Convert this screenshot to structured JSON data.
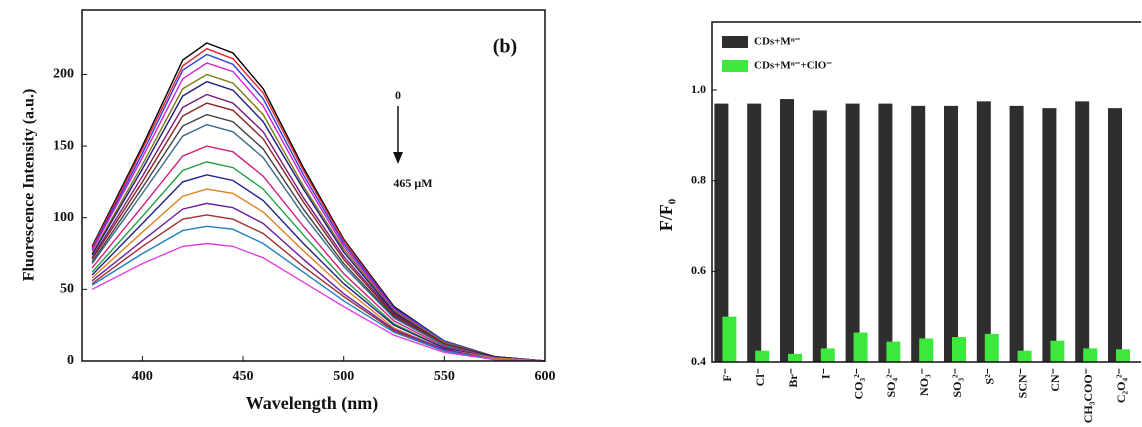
{
  "chart_data": [
    {
      "type": "line",
      "annotations": [
        "(b)",
        "0",
        "465 μM"
      ],
      "x_label": "Wavelength (nm)",
      "y_label": "Fluorescence Intensity (a.u.)",
      "x": [
        375,
        400,
        420,
        432,
        445,
        460,
        480,
        500,
        525,
        550,
        575,
        600
      ],
      "xlim": [
        370,
        600
      ],
      "xticks": [
        400,
        450,
        500,
        550,
        600
      ],
      "ylim": [
        0,
        245
      ],
      "yticks": [
        0,
        50,
        100,
        150,
        200
      ],
      "series": [
        {
          "color": "#000000",
          "values": [
            80,
            150,
            210,
            222,
            215,
            190,
            135,
            85,
            38,
            14,
            3,
            0
          ]
        },
        {
          "color": "#e8202a",
          "values": [
            79,
            148,
            206,
            218,
            211,
            187,
            133,
            84,
            37,
            14,
            3,
            0
          ]
        },
        {
          "color": "#2a3fd8",
          "values": [
            78,
            145,
            203,
            214,
            207,
            183,
            130,
            82,
            37,
            14,
            3,
            0
          ]
        },
        {
          "color": "#d020d0",
          "values": [
            77,
            142,
            197,
            208,
            202,
            178,
            127,
            80,
            36,
            13,
            3,
            0
          ]
        },
        {
          "color": "#7a7a10",
          "values": [
            75,
            137,
            190,
            200,
            194,
            172,
            122,
            78,
            35,
            13,
            3,
            0
          ]
        },
        {
          "color": "#1a1a80",
          "values": [
            74,
            134,
            185,
            195,
            189,
            167,
            120,
            76,
            34,
            12,
            3,
            0
          ]
        },
        {
          "color": "#7a1a7a",
          "values": [
            72,
            129,
            177,
            186,
            180,
            160,
            114,
            73,
            33,
            12,
            2,
            0
          ]
        },
        {
          "color": "#8a2020",
          "values": [
            71,
            125,
            171,
            180,
            175,
            155,
            111,
            71,
            32,
            12,
            2,
            0
          ]
        },
        {
          "color": "#404040",
          "values": [
            69,
            121,
            164,
            172,
            167,
            148,
            106,
            68,
            31,
            11,
            2,
            0
          ]
        },
        {
          "color": "#3a6a8a",
          "values": [
            68,
            117,
            157,
            165,
            160,
            142,
            102,
            66,
            30,
            11,
            2,
            0
          ]
        },
        {
          "color": "#d02080",
          "values": [
            65,
            108,
            143,
            150,
            146,
            129,
            94,
            61,
            28,
            10,
            2,
            0
          ]
        },
        {
          "color": "#20a040",
          "values": [
            62,
            101,
            133,
            139,
            135,
            120,
            88,
            57,
            26,
            9,
            2,
            0
          ]
        },
        {
          "color": "#20208a",
          "values": [
            60,
            96,
            125,
            130,
            126,
            112,
            82,
            54,
            25,
            9,
            2,
            0
          ]
        },
        {
          "color": "#e08020",
          "values": [
            58,
            90,
            115,
            120,
            117,
            104,
            77,
            51,
            23,
            8,
            2,
            0
          ]
        },
        {
          "color": "#6a20a0",
          "values": [
            56,
            84,
            106,
            110,
            107,
            96,
            71,
            47,
            22,
            8,
            1,
            0
          ]
        },
        {
          "color": "#a03030",
          "values": [
            54,
            80,
            99,
            102,
            99,
            89,
            66,
            45,
            21,
            7,
            1,
            0
          ]
        },
        {
          "color": "#2080c0",
          "values": [
            53,
            75,
            91,
            94,
            92,
            82,
            62,
            42,
            20,
            7,
            1,
            0
          ]
        },
        {
          "color": "#e040e0",
          "values": [
            50,
            68,
            80,
            82,
            80,
            72,
            55,
            38,
            18,
            6,
            1,
            0
          ]
        }
      ]
    },
    {
      "type": "bar",
      "y_label": "F/F₀",
      "legend": "upper left",
      "categories": [
        "F⁻",
        "Cl⁻",
        "Br⁻",
        "I⁻",
        "CO₃²⁻",
        "SO₄²⁻",
        "NO₃⁻",
        "SO₃²⁻",
        "S²⁻",
        "SCN⁻",
        "CN⁻",
        "CH₃COO⁻",
        "C₂O₄²⁻"
      ],
      "ylim": [
        0.4,
        1.15
      ],
      "yticks": [
        0.4,
        0.6,
        0.8,
        {
          "value": 1,
          "label": "1.0"
        }
      ],
      "series": [
        {
          "name": "CDs+Mⁿ⁻",
          "color": "#2e2e2e",
          "values": [
            0.97,
            0.97,
            0.98,
            0.955,
            0.97,
            0.97,
            0.965,
            0.965,
            0.975,
            0.965,
            0.96,
            0.975,
            0.96
          ]
        },
        {
          "name": "CDs+Mⁿ⁻+ClO⁻",
          "color": "#3de83d",
          "values": [
            0.5,
            0.425,
            0.418,
            0.43,
            0.465,
            0.445,
            0.452,
            0.455,
            0.462,
            0.425,
            0.447,
            0.43,
            0.428
          ]
        }
      ]
    }
  ]
}
